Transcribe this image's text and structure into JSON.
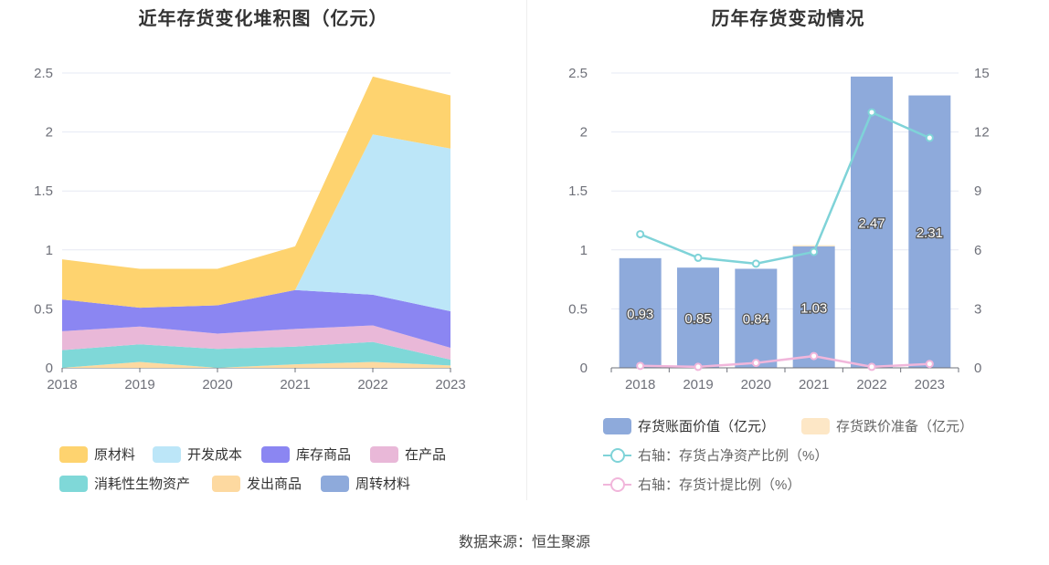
{
  "charts": {
    "left": {
      "title": "近年存货变化堆积图（亿元）"
    },
    "right": {
      "title": "历年存货变动情况"
    }
  },
  "source": "数据来源：恒生聚源",
  "chart_data": [
    {
      "type": "area",
      "stacked": true,
      "title": "近年存货变化堆积图（亿元）",
      "categories": [
        "2018",
        "2019",
        "2020",
        "2021",
        "2022",
        "2023"
      ],
      "ylim": [
        0,
        2.5
      ],
      "yticks": [
        "0",
        "0.5",
        "1",
        "1.5",
        "2",
        "2.5"
      ],
      "grid": true,
      "legend_position": "bottom",
      "series": [
        {
          "name": "周转材料",
          "color": "#8eaadb",
          "values": [
            0.0,
            0.0,
            0.0,
            0.0,
            0.0,
            0.0
          ]
        },
        {
          "name": "发出商品",
          "color": "#fdd9a0",
          "values": [
            0.0,
            0.05,
            0.0,
            0.03,
            0.05,
            0.02
          ]
        },
        {
          "name": "消耗性生物资产",
          "color": "#7fd8d8",
          "values": [
            0.15,
            0.15,
            0.16,
            0.15,
            0.17,
            0.05
          ]
        },
        {
          "name": "在产品",
          "color": "#e9b8d8",
          "values": [
            0.16,
            0.15,
            0.13,
            0.15,
            0.14,
            0.1
          ]
        },
        {
          "name": "库存商品",
          "color": "#8b86f2",
          "values": [
            0.27,
            0.16,
            0.24,
            0.33,
            0.26,
            0.31
          ]
        },
        {
          "name": "开发成本",
          "color": "#bce6f8",
          "values": [
            0.0,
            0.0,
            0.0,
            0.0,
            1.36,
            1.38
          ]
        },
        {
          "name": "原材料",
          "color": "#fed36f",
          "values": [
            0.34,
            0.33,
            0.31,
            0.37,
            0.49,
            0.45
          ]
        }
      ],
      "legend_order": [
        "原材料",
        "开发成本",
        "库存商品",
        "在产品",
        "消耗性生物资产",
        "发出商品",
        "周转材料"
      ]
    },
    {
      "type": "bar",
      "title": "历年存货变动情况",
      "categories": [
        "2018",
        "2019",
        "2020",
        "2021",
        "2022",
        "2023"
      ],
      "ylim": [
        0,
        2.5
      ],
      "yticks": [
        "0",
        "0.5",
        "1",
        "1.5",
        "2",
        "2.5"
      ],
      "y2lim": [
        0,
        15
      ],
      "y2ticks": [
        "0",
        "3",
        "6",
        "9",
        "12",
        "15"
      ],
      "grid": true,
      "legend_position": "bottom",
      "series": [
        {
          "name": "存货账面价值（亿元）",
          "kind": "bar",
          "color": "#8eaadb",
          "values": [
            0.93,
            0.85,
            0.84,
            1.03,
            2.47,
            2.31
          ],
          "labels": [
            "0.93",
            "0.85",
            "0.84",
            "1.03",
            "2.47",
            "2.31"
          ]
        },
        {
          "name": "存货跌价准备（亿元）",
          "kind": "bar",
          "color": "#fde7c6",
          "values": [
            0.0,
            0.0,
            0.0,
            0.01,
            0.0,
            0.0
          ]
        },
        {
          "name": "右轴：存货占净资产比例（%）",
          "kind": "line",
          "axis": "right",
          "color": "#7fd3d8",
          "values": [
            6.8,
            5.6,
            5.3,
            5.9,
            13.0,
            11.7
          ]
        },
        {
          "name": "右轴：存货计提比例（%）",
          "kind": "line",
          "axis": "right",
          "color": "#f1b6db",
          "values": [
            0.1,
            0.05,
            0.25,
            0.6,
            0.05,
            0.2
          ]
        }
      ]
    }
  ]
}
